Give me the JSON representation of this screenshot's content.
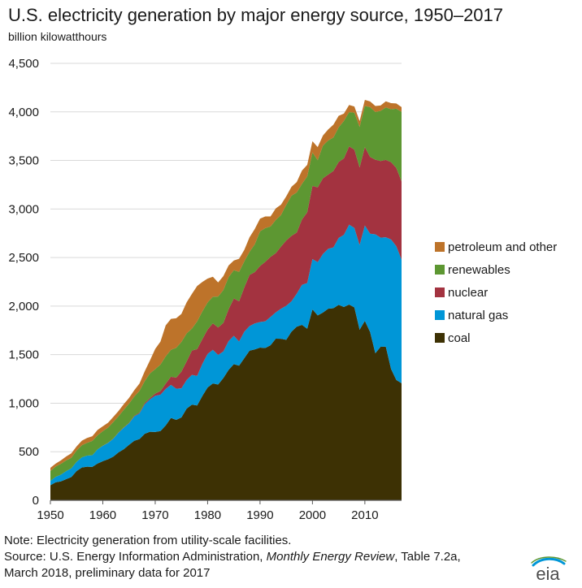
{
  "title": "U.S. electricity generation by major energy source, 1950–2017",
  "subtitle": "billion kilowatthours",
  "notes": {
    "line1": "Note: Electricity generation from utility-scale facilities.",
    "line2_prefix": "Source: U.S. Energy Information Administration, ",
    "line2_italic": "Monthly Energy Review",
    "line2_suffix": ", Table 7.2a,",
    "line3": "March 2018, preliminary data for 2017"
  },
  "logo_text": "eia",
  "chart_data": {
    "type": "area",
    "stacked": true,
    "title": "U.S. electricity generation by major energy source, 1950–2017",
    "ylabel": "billion kilowatthours",
    "xlabel": "",
    "ylim": [
      0,
      4500
    ],
    "xlim": [
      1950,
      2017
    ],
    "y_ticks": [
      0,
      500,
      1000,
      1500,
      2000,
      2500,
      3000,
      3500,
      4000,
      4500
    ],
    "y_tick_labels": [
      "0",
      "500",
      "1,000",
      "1,500",
      "2,000",
      "2,500",
      "3,000",
      "3,500",
      "4,000",
      "4,500"
    ],
    "x_ticks": [
      1950,
      1960,
      1970,
      1980,
      1990,
      2000,
      2010
    ],
    "x_tick_labels": [
      "1950",
      "1960",
      "1970",
      "1980",
      "1990",
      "2000",
      "2010"
    ],
    "grid": true,
    "legend_position": "right",
    "colors": {
      "coal": "#3d3104",
      "natural_gas": "#0096d7",
      "nuclear": "#a33340",
      "renewables": "#5d9732",
      "petroleum": "#bd732a",
      "grid": "#d9d9d9",
      "axis": "#595959"
    },
    "x": [
      1950,
      1951,
      1952,
      1953,
      1954,
      1955,
      1956,
      1957,
      1958,
      1959,
      1960,
      1961,
      1962,
      1963,
      1964,
      1965,
      1966,
      1967,
      1968,
      1969,
      1970,
      1971,
      1972,
      1973,
      1974,
      1975,
      1976,
      1977,
      1978,
      1979,
      1980,
      1981,
      1982,
      1983,
      1984,
      1985,
      1986,
      1987,
      1988,
      1989,
      1990,
      1991,
      1992,
      1993,
      1994,
      1995,
      1996,
      1997,
      1998,
      1999,
      2000,
      2001,
      2002,
      2003,
      2004,
      2005,
      2006,
      2007,
      2008,
      2009,
      2010,
      2011,
      2012,
      2013,
      2014,
      2015,
      2016,
      2017
    ],
    "series": [
      {
        "name": "coal",
        "label": "coal",
        "values": [
          155,
          185,
          195,
          218,
          239,
          301,
          338,
          346,
          344,
          378,
          403,
          422,
          450,
          494,
          526,
          571,
          613,
          630,
          685,
          706,
          704,
          713,
          771,
          848,
          828,
          853,
          944,
          985,
          976,
          1075,
          1162,
          1203,
          1192,
          1259,
          1342,
          1402,
          1386,
          1464,
          1541,
          1554,
          1572,
          1568,
          1597,
          1665,
          1663,
          1653,
          1737,
          1788,
          1807,
          1767,
          1966,
          1904,
          1933,
          1973,
          1978,
          2013,
          1991,
          2016,
          1986,
          1756,
          1847,
          1733,
          1514,
          1581,
          1582,
          1352,
          1239,
          1206
        ]
      },
      {
        "name": "natural_gas",
        "label": "natural gas",
        "values": [
          45,
          57,
          68,
          82,
          90,
          95,
          104,
          114,
          120,
          147,
          158,
          169,
          184,
          202,
          222,
          222,
          251,
          265,
          304,
          333,
          373,
          374,
          376,
          341,
          321,
          300,
          295,
          306,
          305,
          330,
          346,
          346,
          305,
          274,
          297,
          292,
          249,
          273,
          253,
          267,
          264,
          275,
          291,
          270,
          310,
          350,
          312,
          340,
          412,
          470,
          518,
          549,
          603,
          617,
          626,
          689,
          743,
          823,
          819,
          873,
          983,
          1013,
          1225,
          1124,
          1127,
          1334,
          1378,
          1273
        ]
      },
      {
        "name": "nuclear",
        "label": "nuclear",
        "values": [
          0,
          0,
          0,
          0,
          0,
          0,
          0,
          0,
          0,
          0,
          1,
          2,
          2,
          3,
          3,
          4,
          6,
          8,
          13,
          14,
          22,
          38,
          54,
          83,
          114,
          173,
          191,
          251,
          276,
          255,
          251,
          273,
          283,
          294,
          328,
          384,
          414,
          455,
          527,
          529,
          577,
          613,
          619,
          610,
          640,
          673,
          675,
          629,
          673,
          728,
          754,
          769,
          780,
          764,
          788,
          782,
          787,
          806,
          806,
          799,
          807,
          790,
          769,
          789,
          797,
          797,
          806,
          805
        ]
      },
      {
        "name": "renewables",
        "label": "renewables",
        "values": [
          101,
          105,
          112,
          111,
          109,
          117,
          125,
          132,
          148,
          144,
          150,
          156,
          170,
          167,
          181,
          198,
          199,
          224,
          226,
          254,
          252,
          273,
          282,
          278,
          307,
          305,
          289,
          226,
          285,
          286,
          279,
          274,
          318,
          338,
          331,
          292,
          304,
          269,
          239,
          287,
          357,
          347,
          313,
          342,
          325,
          367,
          413,
          413,
          367,
          370,
          344,
          281,
          337,
          351,
          345,
          357,
          386,
          353,
          381,
          417,
          424,
          513,
          491,
          517,
          540,
          544,
          610,
          717
        ]
      },
      {
        "name": "petroleum",
        "label": "petroleum and other",
        "values": [
          34,
          30,
          36,
          40,
          46,
          42,
          47,
          50,
          48,
          56,
          50,
          50,
          52,
          54,
          58,
          59,
          64,
          75,
          101,
          134,
          208,
          236,
          318,
          318,
          305,
          289,
          320,
          358,
          365,
          303,
          246,
          206,
          146,
          144,
          120,
          100,
          134,
          118,
          149,
          158,
          130,
          120,
          103,
          119,
          107,
          87,
          92,
          107,
          137,
          119,
          116,
          134,
          104,
          114,
          132,
          118,
          75,
          73,
          64,
          60,
          63,
          59,
          62,
          55,
          63,
          63,
          54,
          48
        ]
      }
    ]
  }
}
